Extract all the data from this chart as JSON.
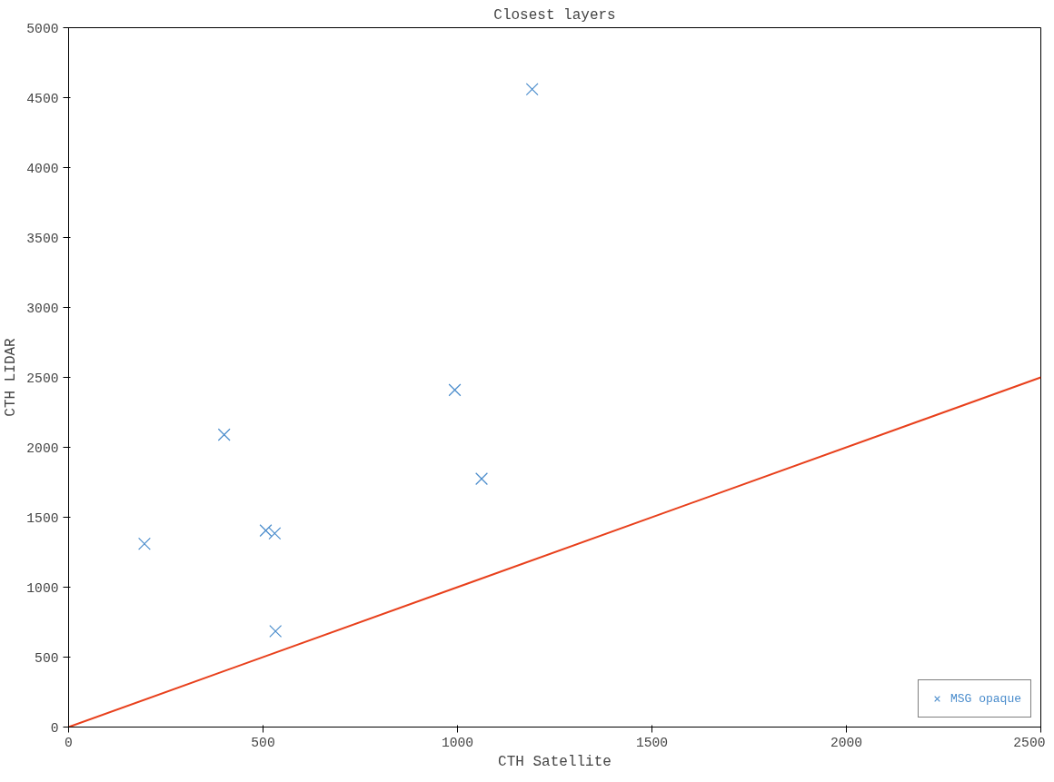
{
  "chart_data": {
    "type": "scatter",
    "title": "Closest layers",
    "xlabel": "CTH Satellite",
    "ylabel": "CTH LIDAR",
    "xlim": [
      0,
      2500
    ],
    "ylim": [
      0,
      5000
    ],
    "xticks": [
      0,
      500,
      1000,
      1500,
      2000,
      2500
    ],
    "yticks": [
      0,
      500,
      1000,
      1500,
      2000,
      2500,
      3000,
      3500,
      4000,
      4500,
      5000
    ],
    "grid": false,
    "legend": "bottom right",
    "series": [
      {
        "name": "MSG opaque",
        "marker": "cross",
        "color": "#4a8ccc",
        "x": [
          195,
          400,
          507,
          530,
          532,
          993,
          1062,
          1192
        ],
        "values": [
          1310,
          2090,
          1405,
          1385,
          685,
          2410,
          1775,
          4560
        ]
      },
      {
        "type": "line",
        "color": "#e8401c",
        "x": [
          0,
          2500
        ],
        "values": [
          0,
          2500
        ]
      }
    ]
  }
}
